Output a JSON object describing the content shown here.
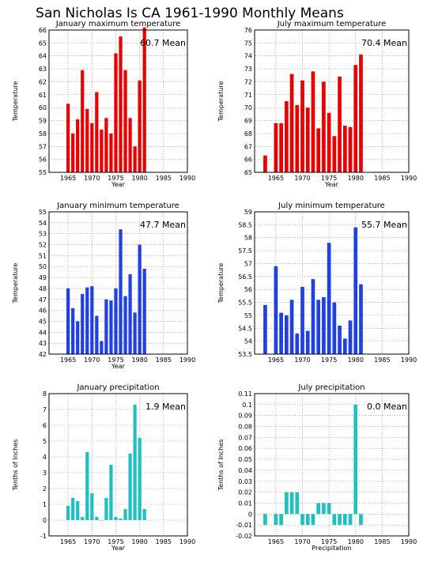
{
  "page_title": "San Nicholas Is CA  1961-1990 Monthly Means",
  "year_ticks": [
    1965,
    1970,
    1975,
    1980,
    1985,
    1990
  ],
  "chart_data": [
    {
      "id": "jan-max",
      "type": "bar",
      "title": "January maximum temperature",
      "xlabel": "Year",
      "ylabel": "Temperature",
      "mean_label": "60.7  Mean",
      "color": "#e60000",
      "xlim": [
        1961,
        1990
      ],
      "ylim": [
        55,
        66
      ],
      "yticks": [
        55,
        56,
        57,
        58,
        59,
        60,
        61,
        62,
        63,
        64,
        65,
        66
      ],
      "x": [
        1965,
        1966,
        1967,
        1968,
        1969,
        1970,
        1971,
        1972,
        1973,
        1974,
        1975,
        1976,
        1977,
        1978,
        1979,
        1980,
        1981
      ],
      "values": [
        60.3,
        58.0,
        59.1,
        62.9,
        59.9,
        58.8,
        61.2,
        58.3,
        59.2,
        58.0,
        64.2,
        65.5,
        62.9,
        59.2,
        57.0,
        62.1,
        66.2
      ]
    },
    {
      "id": "jul-max",
      "type": "bar",
      "title": "July maximum temperature",
      "xlabel": "Year",
      "ylabel": "Temperature",
      "mean_label": "70.4  Mean",
      "color": "#e60000",
      "xlim": [
        1961,
        1990
      ],
      "ylim": [
        65,
        76
      ],
      "yticks": [
        65,
        66,
        67,
        68,
        69,
        70,
        71,
        72,
        73,
        74,
        75,
        76
      ],
      "x": [
        1963,
        1965,
        1966,
        1967,
        1968,
        1969,
        1970,
        1971,
        1972,
        1973,
        1974,
        1975,
        1976,
        1977,
        1978,
        1979,
        1980,
        1981
      ],
      "values": [
        66.3,
        68.8,
        68.8,
        70.5,
        72.6,
        70.2,
        72.1,
        70.0,
        72.8,
        68.4,
        72.0,
        69.6,
        67.8,
        72.4,
        68.6,
        68.5,
        73.3,
        74.1
      ]
    },
    {
      "id": "jan-min",
      "type": "bar",
      "title": "January minimum temperature",
      "xlabel": "Year",
      "ylabel": "Temperature",
      "mean_label": "47.7  Mean",
      "color": "#2040e0",
      "xlim": [
        1961,
        1990
      ],
      "ylim": [
        42,
        55
      ],
      "yticks": [
        42,
        43,
        44,
        45,
        46,
        47,
        48,
        49,
        50,
        51,
        52,
        53,
        54,
        55
      ],
      "x": [
        1965,
        1966,
        1967,
        1968,
        1969,
        1970,
        1971,
        1972,
        1973,
        1974,
        1975,
        1976,
        1977,
        1978,
        1979,
        1980,
        1981
      ],
      "values": [
        48.0,
        46.2,
        45.0,
        47.5,
        48.1,
        48.2,
        45.5,
        43.2,
        47.0,
        46.9,
        48.0,
        53.4,
        47.3,
        49.3,
        45.8,
        52.0,
        49.8
      ]
    },
    {
      "id": "jul-min",
      "type": "bar",
      "title": "July minimum temperature",
      "xlabel": "",
      "ylabel": "Temperature",
      "mean_label": "55.7  Mean",
      "color": "#2040e0",
      "xlim": [
        1961,
        1990
      ],
      "ylim": [
        53.5,
        59
      ],
      "yticks": [
        53.5,
        54,
        54.5,
        55,
        55.5,
        56,
        56.5,
        57,
        57.5,
        58,
        58.5,
        59
      ],
      "ytick_labels": [
        "53.5",
        "54",
        "54.5",
        "55",
        "55.5",
        "56",
        "56.5",
        "57",
        "57.5",
        "58",
        "58.5",
        "59"
      ],
      "x": [
        1963,
        1965,
        1966,
        1967,
        1968,
        1969,
        1970,
        1971,
        1972,
        1973,
        1974,
        1975,
        1976,
        1977,
        1978,
        1979,
        1980,
        1981
      ],
      "values": [
        55.4,
        56.9,
        55.1,
        55.0,
        55.6,
        54.3,
        56.1,
        54.4,
        56.4,
        55.6,
        55.7,
        57.8,
        55.5,
        54.6,
        54.1,
        54.8,
        58.4,
        56.2
      ]
    },
    {
      "id": "jan-precip",
      "type": "bar",
      "title": "January precipitation",
      "xlabel": "Year",
      "ylabel": "Tenths of Inches",
      "mean_label": "1.9  Mean",
      "color": "#20c0c0",
      "xlim": [
        1961,
        1990
      ],
      "ylim": [
        -1,
        8
      ],
      "yticks": [
        -1,
        0,
        1,
        2,
        3,
        4,
        5,
        6,
        7,
        8
      ],
      "x": [
        1965,
        1966,
        1967,
        1968,
        1969,
        1970,
        1971,
        1972,
        1973,
        1974,
        1975,
        1976,
        1977,
        1978,
        1979,
        1980,
        1981
      ],
      "values": [
        0.9,
        1.4,
        1.2,
        0.2,
        4.3,
        1.7,
        0.2,
        0.0,
        1.4,
        3.5,
        0.2,
        0.1,
        0.7,
        4.2,
        7.3,
        5.2,
        0.7
      ]
    },
    {
      "id": "jul-precip",
      "type": "bar",
      "title": "July precipitation",
      "xlabel": "Precipitation",
      "ylabel": "Tenths of Inches",
      "mean_label": "0.0  Mean",
      "color": "#20c0c0",
      "xlim": [
        1961,
        1990
      ],
      "ylim": [
        -0.02,
        0.11
      ],
      "yticks": [
        -0.02,
        -0.01,
        0,
        0.01,
        0.02,
        0.03,
        0.04,
        0.05,
        0.06,
        0.07,
        0.08,
        0.09,
        0.1,
        0.11
      ],
      "ytick_labels": [
        "-0.02",
        "-0.01",
        "0",
        "0.01",
        "0.02",
        "0.03",
        "0.04",
        "0.05",
        "0.06",
        "0.07",
        "0.08",
        "0.09",
        "0.1",
        "0.11"
      ],
      "x": [
        1963,
        1965,
        1966,
        1967,
        1968,
        1969,
        1970,
        1971,
        1972,
        1973,
        1974,
        1975,
        1976,
        1977,
        1978,
        1979,
        1980,
        1981
      ],
      "values": [
        -0.01,
        -0.01,
        -0.01,
        0.02,
        0.02,
        0.02,
        -0.01,
        -0.01,
        -0.01,
        0.01,
        0.01,
        0.01,
        -0.01,
        -0.01,
        -0.01,
        -0.01,
        0.1,
        -0.01
      ]
    }
  ]
}
